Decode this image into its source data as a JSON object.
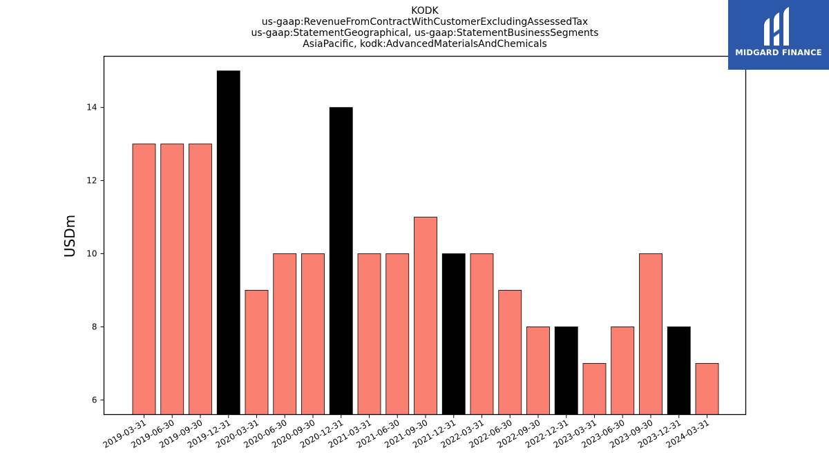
{
  "logo": {
    "text": "MIDGARD FINANCE",
    "background": "#2b58a8"
  },
  "chart_data": {
    "type": "bar",
    "title_lines": [
      "KODK",
      "us-gaap:RevenueFromContractWithCustomerExcludingAssessedTax",
      "us-gaap:StatementGeographical, us-gaap:StatementBusinessSegments",
      "AsiaPacific, kodk:AdvancedMaterialsAndChemicals"
    ],
    "xlabel": "",
    "ylabel": "USDm",
    "ylim": [
      5.6,
      15.4
    ],
    "yticks": [
      6,
      8,
      10,
      12,
      14
    ],
    "grid": false,
    "colors": {
      "quarter": "#fa8072",
      "year_end": "#000000"
    },
    "categories": [
      "2019-03-31",
      "2019-06-30",
      "2019-09-30",
      "2019-12-31",
      "2020-03-31",
      "2020-06-30",
      "2020-09-30",
      "2020-12-31",
      "2021-03-31",
      "2021-06-30",
      "2021-09-30",
      "2021-12-31",
      "2022-03-31",
      "2022-06-30",
      "2022-09-30",
      "2022-12-31",
      "2023-03-31",
      "2023-06-30",
      "2023-09-30",
      "2023-12-31",
      "2024-03-31"
    ],
    "values": [
      13,
      13,
      13,
      15,
      9,
      10,
      10,
      14,
      10,
      10,
      11,
      10,
      10,
      9,
      8,
      8,
      7,
      8,
      10,
      8,
      7
    ]
  }
}
